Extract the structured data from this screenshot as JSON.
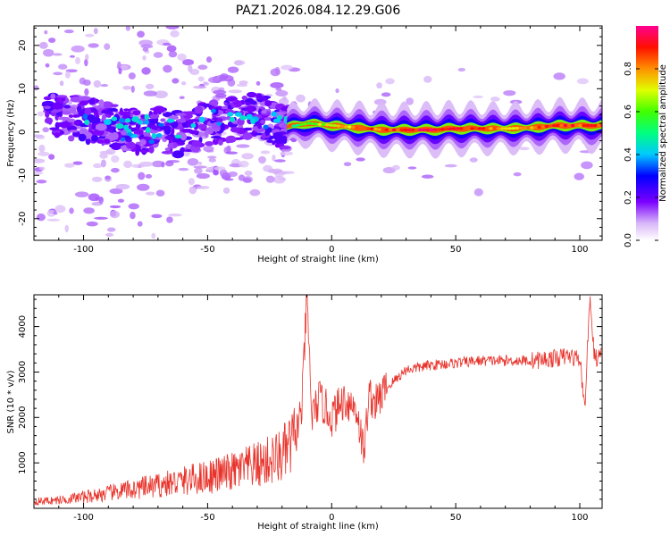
{
  "title": "PAZ1.2026.084.12.29.G06",
  "colors": {
    "axis": "#000000",
    "snr_line": "#e8332b",
    "background": "#ffffff"
  },
  "chart_data": [
    {
      "type": "heatmap",
      "name": "spectrogram",
      "xlabel": "Height of straight line (km)",
      "ylabel": "Frequency (Hz)",
      "xlim": [
        -120,
        109
      ],
      "ylim": [
        -25,
        24.5
      ],
      "xticks": [
        -100,
        -50,
        0,
        50,
        100
      ],
      "yticks": [
        -20,
        -10,
        0,
        10,
        20
      ],
      "tick_labels_x": [
        "-100",
        "-50",
        "0",
        "50",
        "100"
      ],
      "tick_labels_y": [
        "-20",
        "-10",
        "0",
        "10",
        "20"
      ],
      "ridge": {
        "description": "dominant spectral ridge (height km, frequency Hz, normalized amplitude)",
        "points": [
          [
            -100,
            3,
            0.35
          ],
          [
            -90,
            2,
            0.3
          ],
          [
            -80,
            0,
            0.3
          ],
          [
            -70,
            1,
            0.35
          ],
          [
            -60,
            -1,
            0.3
          ],
          [
            -50,
            2,
            0.35
          ],
          [
            -40,
            3,
            0.3
          ],
          [
            -30,
            4,
            0.4
          ],
          [
            -20,
            1,
            0.45
          ],
          [
            -10,
            2,
            0.6
          ],
          [
            0,
            1.5,
            0.7
          ],
          [
            10,
            1,
            0.8
          ],
          [
            20,
            0.5,
            0.85
          ],
          [
            30,
            0.5,
            0.9
          ],
          [
            40,
            0.5,
            0.95
          ],
          [
            50,
            0.8,
            0.95
          ],
          [
            60,
            0.8,
            0.85
          ],
          [
            70,
            0.8,
            0.75
          ],
          [
            80,
            1,
            0.8
          ],
          [
            90,
            1.5,
            0.9
          ],
          [
            100,
            1.5,
            0.85
          ],
          [
            108,
            1.5,
            0.9
          ]
        ]
      },
      "colorbar": {
        "label": "Normalized spectral amplitude",
        "range": [
          0,
          1
        ],
        "ticks": [
          0.0,
          0.2,
          0.4,
          0.6,
          0.8
        ],
        "tick_labels": [
          "0.0",
          "0.2",
          "0.4",
          "0.6",
          "0.8"
        ]
      }
    },
    {
      "type": "line",
      "name": "snr",
      "xlabel": "Height of straight line (km)",
      "ylabel": "SNR (10 * v/v)",
      "xlim": [
        -120,
        109
      ],
      "ylim": [
        0,
        4700
      ],
      "xticks": [
        -100,
        -50,
        0,
        50,
        100
      ],
      "yticks": [
        1000,
        2000,
        3000,
        4000
      ],
      "tick_labels_x": [
        "-100",
        "-50",
        "0",
        "50",
        "100"
      ],
      "tick_labels_y": [
        "1000",
        "2000",
        "3000",
        "4000"
      ],
      "series": [
        {
          "name": "SNR",
          "x": [
            -120,
            -110,
            -100,
            -90,
            -80,
            -70,
            -60,
            -50,
            -40,
            -30,
            -20,
            -15,
            -12,
            -10,
            -8,
            -5,
            0,
            5,
            10,
            13,
            15,
            18,
            20,
            25,
            30,
            40,
            50,
            60,
            70,
            80,
            90,
            95,
            100,
            102,
            104,
            106,
            109
          ],
          "y": [
            150,
            180,
            250,
            330,
            420,
            500,
            600,
            700,
            800,
            950,
            1150,
            1500,
            2200,
            4700,
            2000,
            2400,
            2000,
            2400,
            2200,
            1200,
            2500,
            2300,
            2500,
            2800,
            3050,
            3150,
            3200,
            3250,
            3250,
            3250,
            3300,
            3350,
            3300,
            2200,
            4600,
            3300,
            3350
          ]
        }
      ]
    }
  ]
}
